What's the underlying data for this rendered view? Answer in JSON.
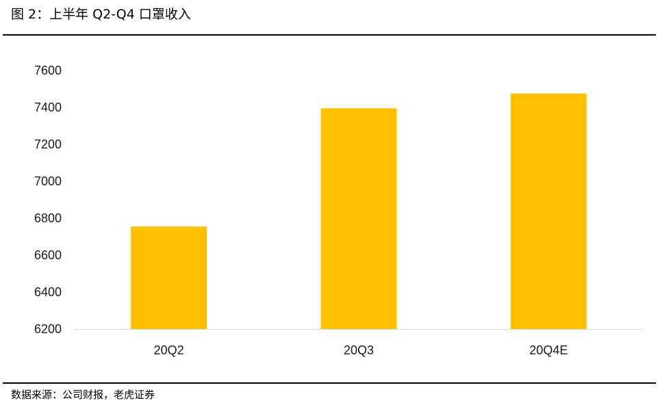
{
  "figure": {
    "title": "图 2：上半年 Q2-Q4 口罩收入",
    "source": "数据来源：公司财报，老虎证券"
  },
  "chart_data": {
    "type": "bar",
    "categories": [
      "20Q2",
      "20Q3",
      "20Q4E"
    ],
    "values": [
      6755,
      7395,
      7475
    ],
    "title": "",
    "xlabel": "",
    "ylabel": "",
    "ylim": [
      6200,
      7600
    ],
    "yticks": [
      6200,
      6400,
      6600,
      6800,
      7000,
      7200,
      7400,
      7600
    ],
    "grid": false,
    "legend": "none",
    "bar_color": "#FFC000"
  }
}
